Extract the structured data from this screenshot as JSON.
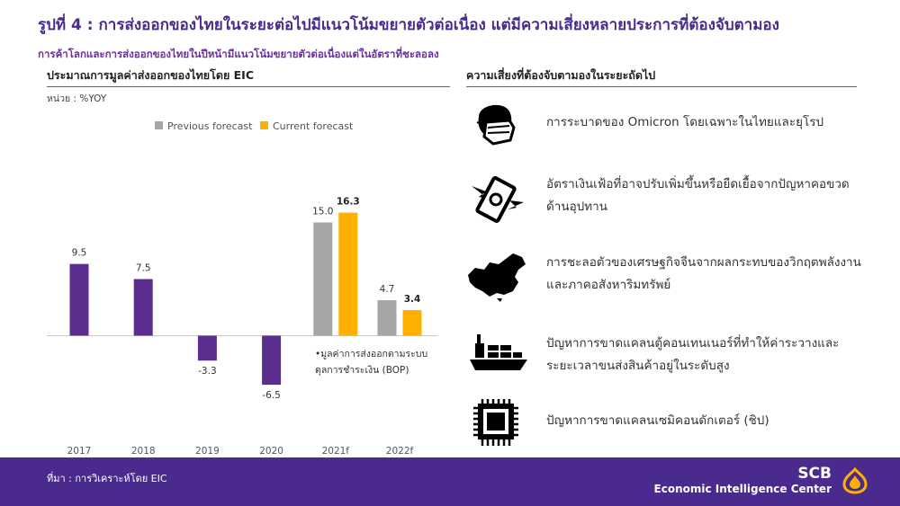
{
  "header": {
    "title": "รูปที่ 4 : การส่งออกของไทยในระยะต่อไปมีแนวโน้มขยายตัวต่อเนื่อง แต่มีความเสี่ยงหลายประการที่ต้องจับตามอง",
    "subtitle": "การค้าโลกและการส่งออกของไทยในปีหน้ามีแนวโน้มขยายตัวต่อเนื่องแต่ในอัตราที่ชะลอลง"
  },
  "left_panel": {
    "heading": "ประมาณการมูลค่าส่งออกของไทยโดย EIC",
    "unit": "หน่วย : %YOY",
    "note_line1": "•มูลค่าการส่งออกตามระบบ",
    "note_line2": "ดุลการชำระเงิน (BOP)"
  },
  "chart_data": {
    "type": "bar",
    "categories": [
      "2017",
      "2018",
      "2019",
      "2020",
      "2021f",
      "2022f"
    ],
    "series": [
      {
        "name": "Previous forecast",
        "values": [
          9.5,
          7.5,
          -3.3,
          -6.5,
          15.0,
          4.7
        ]
      },
      {
        "name": "Current forecast",
        "values": [
          null,
          null,
          null,
          null,
          16.3,
          3.4
        ]
      }
    ],
    "value_labels": {
      "previous": [
        "9.5",
        "7.5",
        "-3.3",
        "-6.5",
        "15.0",
        "4.7"
      ],
      "current": [
        "",
        "",
        "",
        "",
        "16.3",
        "3.4"
      ]
    },
    "legend": [
      "Previous forecast",
      "Current forecast"
    ],
    "legend_position": "top",
    "ylim": [
      -7.5,
      18
    ],
    "grid": false,
    "colors": {
      "actual": "#5b2d8e",
      "previous": "#a6a6a6",
      "current": "#ffb000"
    }
  },
  "right_panel": {
    "heading": "ความเสี่ยงที่ต้องจับตามองในระยะถัดไป",
    "risks": [
      {
        "icon": "face-mask-icon",
        "text": "การระบาดของ Omicron โดยเฉพาะในไทยและยุโรป"
      },
      {
        "icon": "money-wings-icon",
        "text": "อัตราเงินเฟ้อที่อาจปรับเพิ่มขึ้นหรือยืดเยื้อจากปัญหาคอขวดด้านอุปทาน"
      },
      {
        "icon": "china-map-icon",
        "text": "การชะลอตัวของเศรษฐกิจจีนจากผลกระทบของวิกฤตพลังงานและภาคอสังหาริมทรัพย์"
      },
      {
        "icon": "container-ship-icon",
        "text": "ปัญหาการขาดแคลนตู้คอนเทนเนอร์ที่ทำให้ค่าระวางและระยะเวลาขนส่งสินค้าอยู่ในระดับสูง"
      },
      {
        "icon": "microchip-icon",
        "text": "ปัญหาการขาดแคลนเซมิคอนดักเตอร์ (ชิป)"
      }
    ]
  },
  "footer": {
    "source": "ที่มา : การวิเคราะห์โดย EIC",
    "brand": "SCB",
    "brand_sub": "Economic Intelligence Center"
  }
}
